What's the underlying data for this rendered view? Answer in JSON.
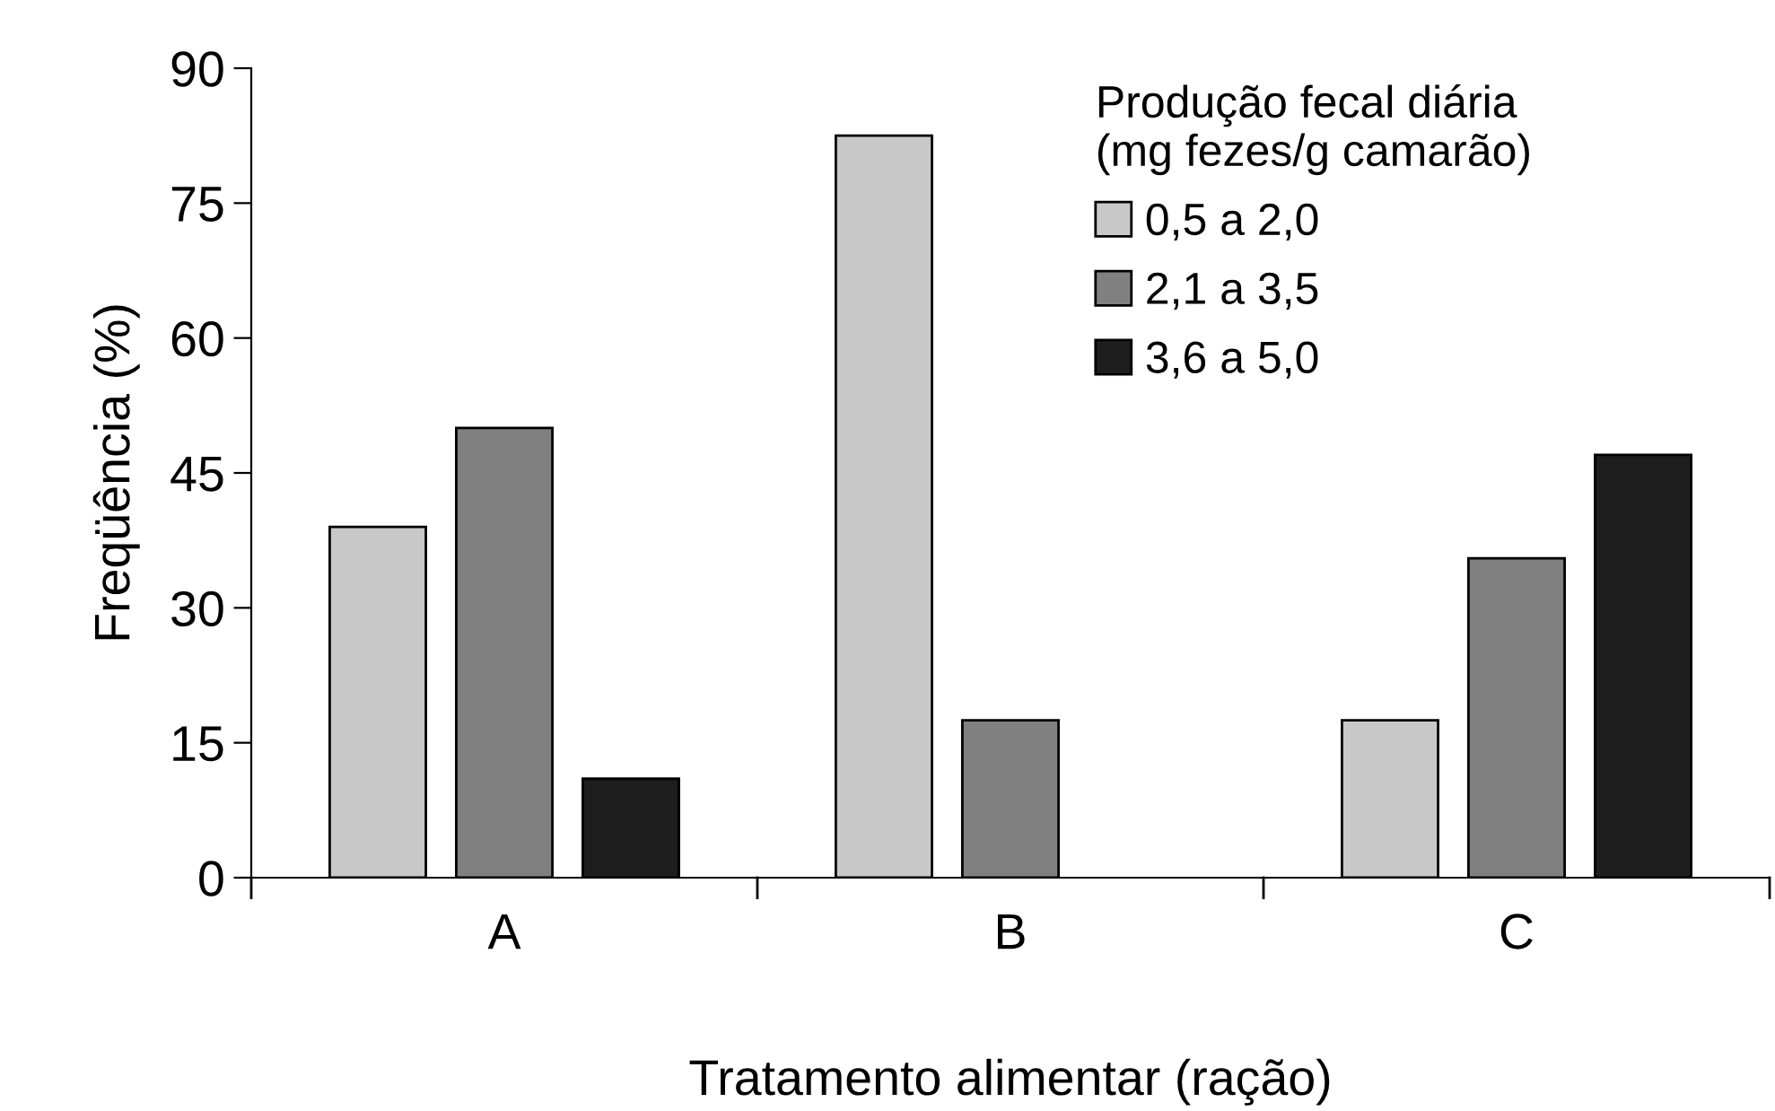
{
  "chart_data": {
    "type": "bar",
    "xlabel": "Tratamento alimentar (ração)",
    "ylabel": "Freqüência (%)",
    "legend_title": "Produção fecal diária\n(mg fezes/g camarão)",
    "categories": [
      "A",
      "B",
      "C"
    ],
    "series": [
      {
        "name": "0,5 a 2,0",
        "color": "#c8c8c8",
        "values": [
          39,
          82.5,
          17.5
        ]
      },
      {
        "name": "2,1 a 3,5",
        "color": "#808080",
        "values": [
          50,
          17.5,
          35.5
        ]
      },
      {
        "name": "3,6 a 5,0",
        "color": "#1e1e1e",
        "values": [
          11,
          null,
          47
        ]
      }
    ],
    "ylim": [
      0,
      90
    ],
    "yticks": [
      0,
      15,
      30,
      45,
      60,
      75,
      90
    ],
    "grid": false,
    "legend": "top right"
  }
}
